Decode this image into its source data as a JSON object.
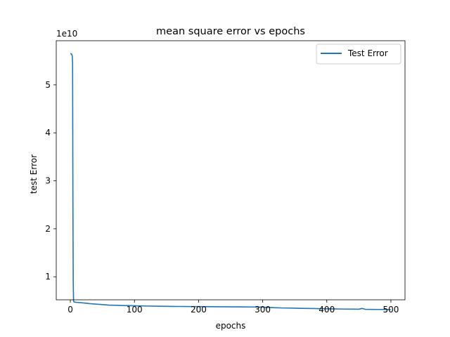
{
  "chart_data": {
    "type": "line",
    "title": "mean square error vs epochs",
    "xlabel": "epochs",
    "ylabel": "test Error",
    "y_scale_label": "1e10",
    "y_scale_factor": 10000000000,
    "xlim": [
      -22,
      522
    ],
    "ylim": [
      0.52,
      5.92
    ],
    "x_ticks": [
      0,
      100,
      200,
      300,
      400,
      500
    ],
    "x_tick_labels": [
      "0",
      "100",
      "200",
      "300",
      "400",
      "500"
    ],
    "y_ticks": [
      1,
      2,
      3,
      4,
      5
    ],
    "y_tick_labels": [
      "1",
      "2",
      "3",
      "4",
      "5"
    ],
    "grid": false,
    "legend": {
      "position": "top-right"
    },
    "color": "#1f77b4",
    "series": [
      {
        "name": "Test Error",
        "x": [
          0,
          1,
          2,
          3,
          3.5,
          4,
          4.5,
          5,
          6,
          8,
          10,
          15,
          20,
          25,
          30,
          35,
          40,
          50,
          60,
          70,
          80,
          90,
          100,
          110,
          120,
          130,
          140,
          150,
          160,
          170,
          180,
          190,
          200,
          210,
          220,
          230,
          240,
          250,
          260,
          270,
          280,
          290,
          300,
          310,
          320,
          330,
          340,
          350,
          360,
          370,
          380,
          390,
          400,
          410,
          420,
          430,
          440,
          450,
          455,
          460,
          470,
          480,
          490,
          500
        ],
        "y": [
          5.65,
          5.65,
          5.64,
          5.6,
          5.45,
          2.5,
          0.9,
          0.49,
          0.475,
          0.47,
          0.465,
          0.46,
          0.455,
          0.448,
          0.44,
          0.435,
          0.43,
          0.42,
          0.41,
          0.405,
          0.4,
          0.398,
          0.395,
          0.392,
          0.39,
          0.387,
          0.385,
          0.383,
          0.382,
          0.381,
          0.38,
          0.379,
          0.378,
          0.377,
          0.376,
          0.375,
          0.374,
          0.373,
          0.372,
          0.371,
          0.37,
          0.369,
          0.368,
          0.36,
          0.355,
          0.35,
          0.348,
          0.345,
          0.342,
          0.34,
          0.338,
          0.335,
          0.332,
          0.33,
          0.328,
          0.326,
          0.325,
          0.323,
          0.34,
          0.322,
          0.32,
          0.319,
          0.318,
          0.317
        ]
      }
    ]
  }
}
